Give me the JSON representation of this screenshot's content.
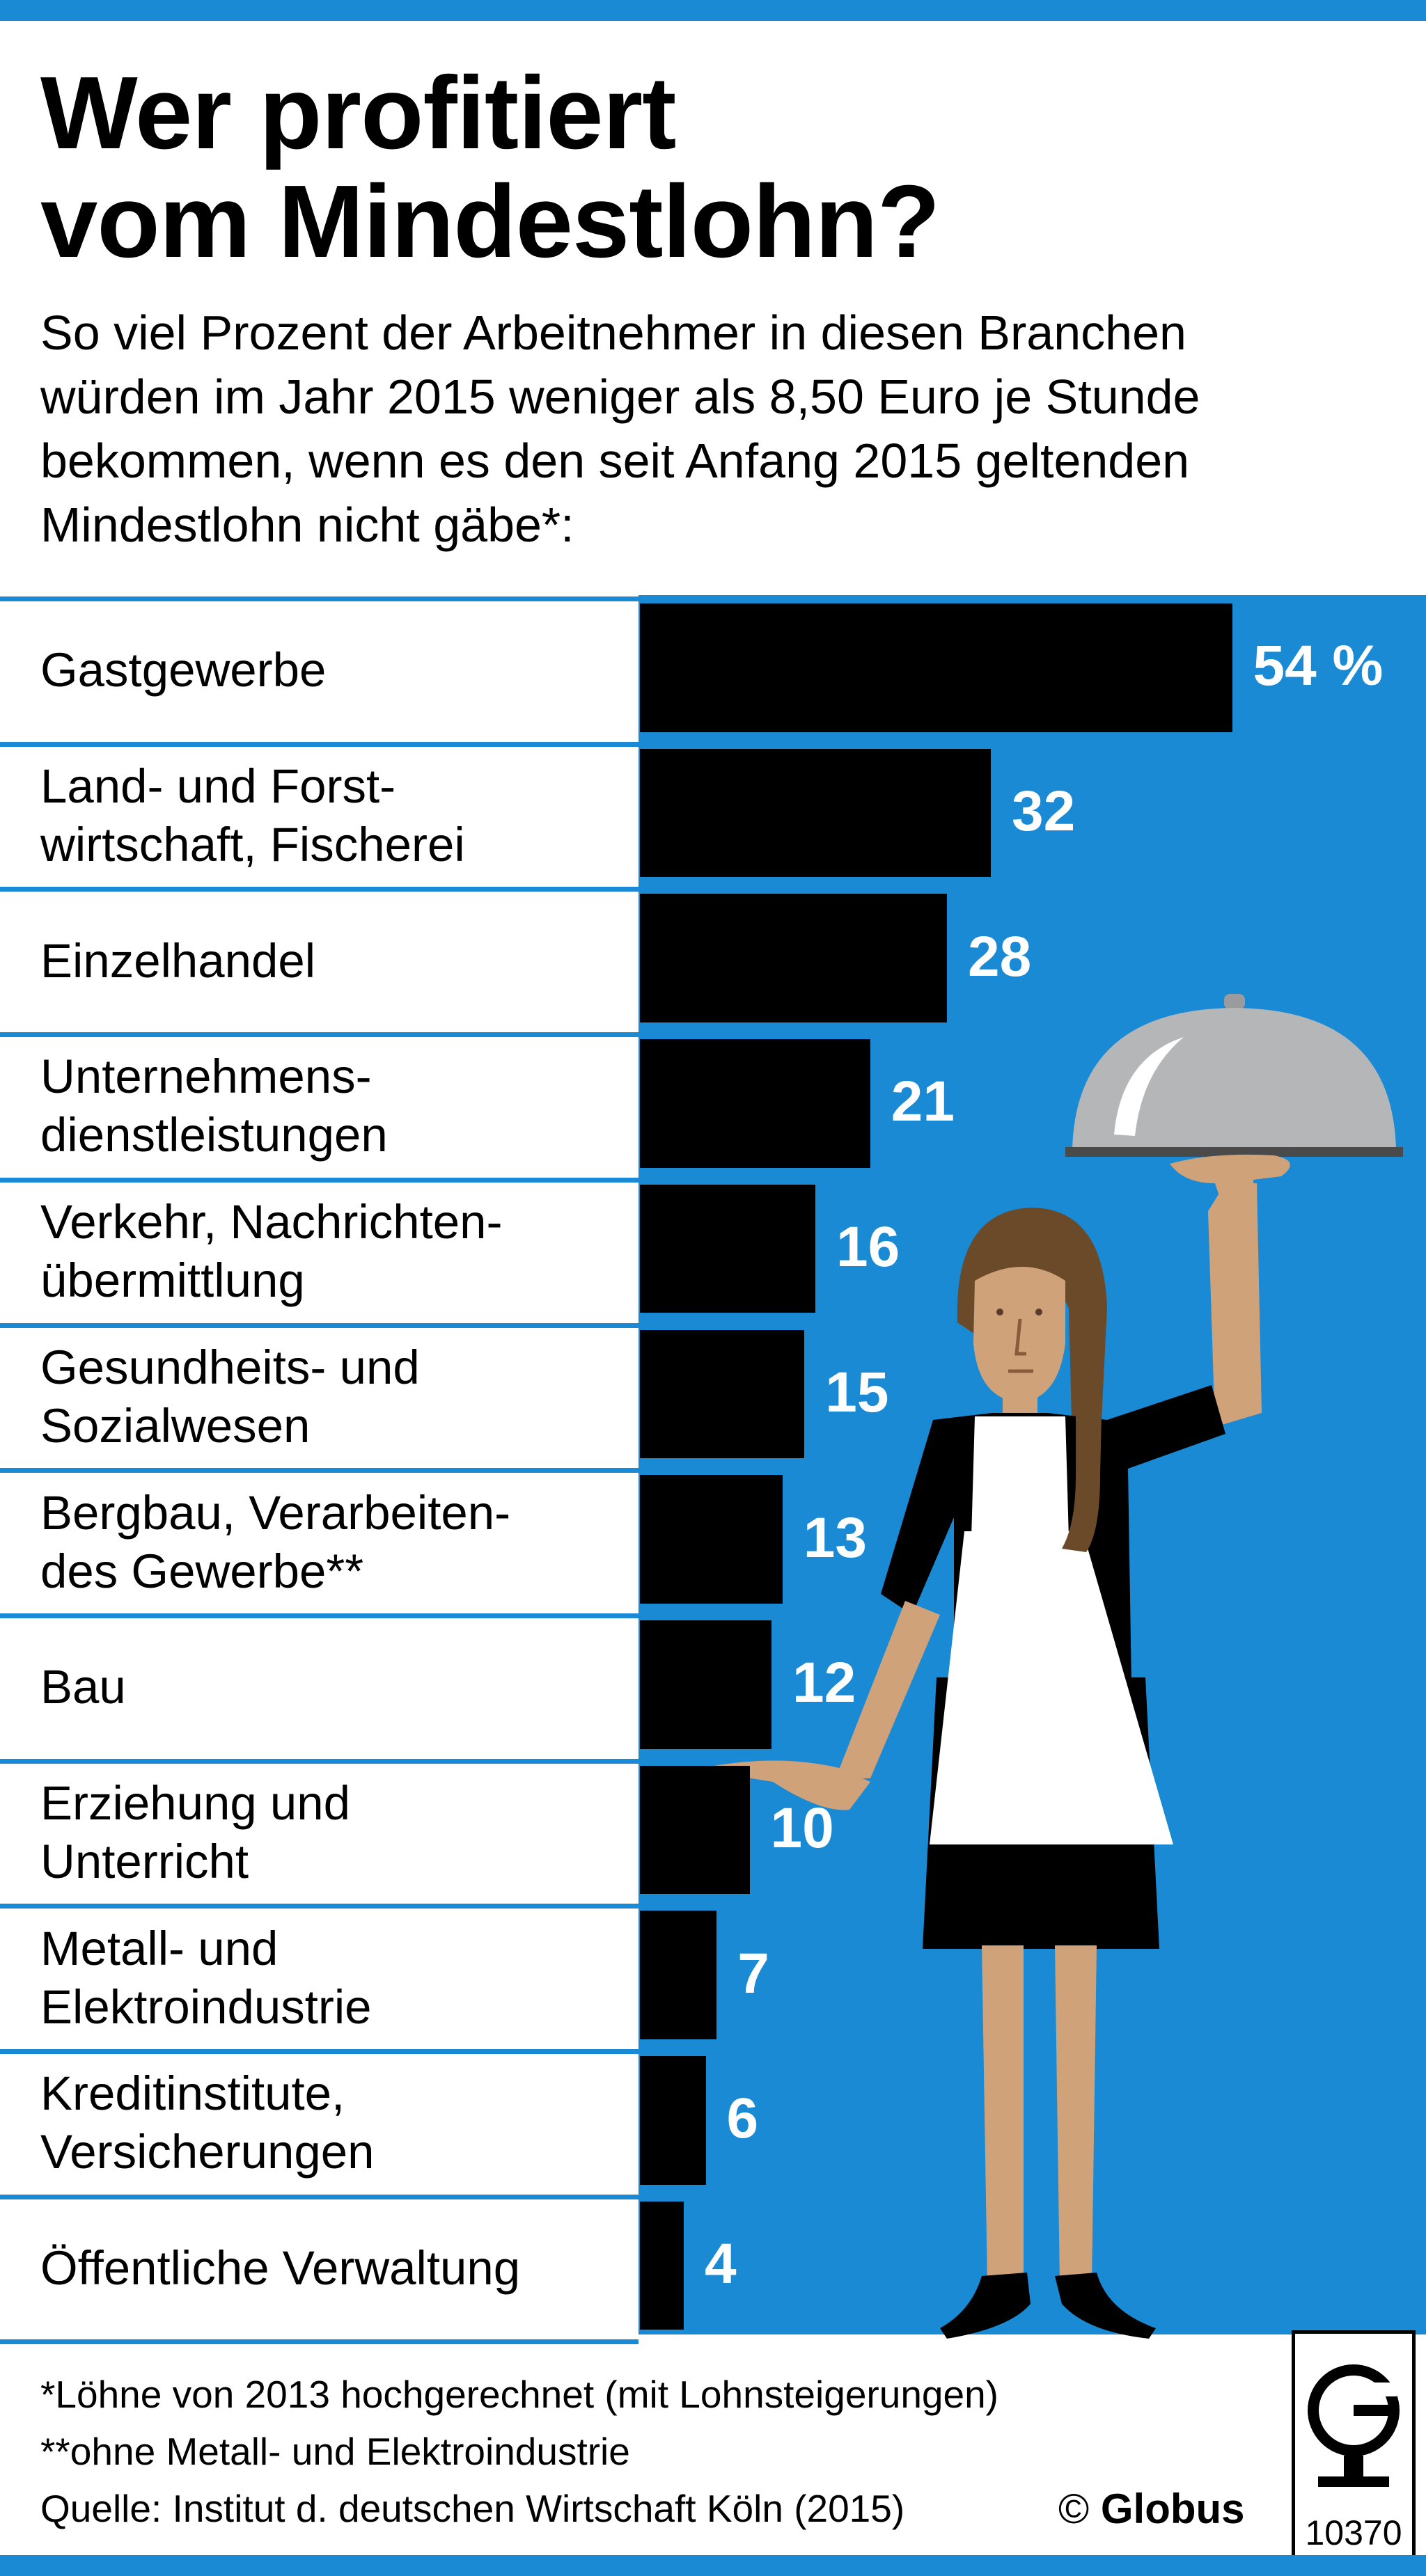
{
  "title_lines": [
    "Wer profitiert",
    "vom Mindestlohn?"
  ],
  "subtitle_lines": [
    "So viel Prozent der Arbeitnehmer in diesen Branchen",
    "würden im Jahr 2015 weniger als 8,50 Euro je Stunde",
    "bekommen, wenn es den seit Anfang 2015 geltenden",
    "Mindestlohn nicht gäbe*:"
  ],
  "chart_data": {
    "type": "bar",
    "orientation": "horizontal",
    "title": "Wer profitiert vom Mindestlohn?",
    "unit": "%",
    "categories": [
      "Gastgewerbe",
      "Land- und Forst-wirtschaft, Fischerei",
      "Einzelhandel",
      "Unternehmens-dienstleistungen",
      "Verkehr, Nachrichten-übermittlung",
      "Gesundheits- und Sozialwesen",
      "Bergbau, Verarbeiten-des Gewerbe**",
      "Bau",
      "Erziehung und Unterricht",
      "Metall- und Elektroindustrie",
      "Kreditinstitute, Versicherungen",
      "Öffentliche Verwaltung"
    ],
    "values": [
      54,
      32,
      28,
      21,
      16,
      15,
      13,
      12,
      10,
      7,
      6,
      4
    ],
    "value_labels": [
      "54 %",
      "32",
      "28",
      "21",
      "16",
      "15",
      "13",
      "12",
      "10",
      "7",
      "6",
      "4"
    ],
    "label_lines": [
      [
        "Gastgewerbe"
      ],
      [
        "Land- und Forst-",
        "wirtschaft, Fischerei"
      ],
      [
        "Einzelhandel"
      ],
      [
        "Unternehmens-",
        "dienstleistungen"
      ],
      [
        "Verkehr, Nachrichten-",
        "übermittlung"
      ],
      [
        "Gesundheits- und",
        "Sozialwesen"
      ],
      [
        "Bergbau, Verarbeiten-",
        "des Gewerbe**"
      ],
      [
        "Bau"
      ],
      [
        "Erziehung und",
        "Unterricht"
      ],
      [
        "Metall- und",
        "Elektroindustrie"
      ],
      [
        "Kreditinstitute,",
        "Versicherungen"
      ],
      [
        "Öffentliche Verwaltung"
      ]
    ],
    "grid": false,
    "legend": "none"
  },
  "footnotes": [
    "*Löhne von 2013 hochgerechnet (mit Lohnsteigerungen)",
    "**ohne Metall- und Elektroindustrie",
    "Quelle: Institut d. deutschen Wirtschaft Köln (2015)"
  ],
  "copyright": {
    "symbol": "©",
    "brand": "Globus"
  },
  "graphic_number": "10370",
  "colors": {
    "accent_blue": "#1a8ad4",
    "bar": "#000000",
    "value_text": "#ffffff",
    "cloche": "#b5b6b8",
    "skin": "#cfa27a",
    "hair": "#6b4a2a",
    "apron": "#ffffff",
    "uniform": "#000000"
  },
  "illustration": "waitress-holding-cloche"
}
